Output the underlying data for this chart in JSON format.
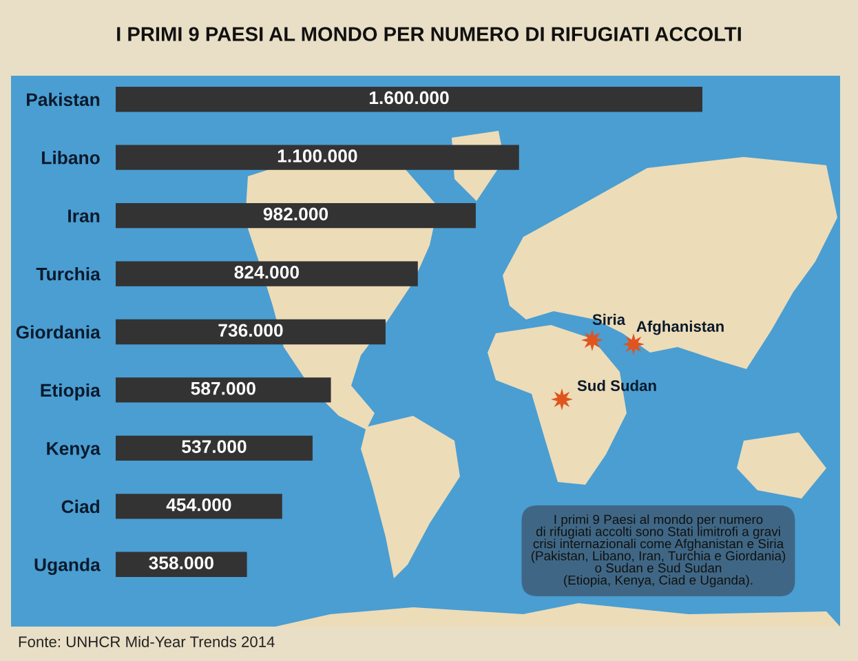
{
  "chart_data": {
    "type": "bar",
    "orientation": "horizontal",
    "title": "I PRIMI 9 PAESI AL MONDO PER NUMERO DI RIFUGIATI ACCOLTI",
    "categories": [
      "Pakistan",
      "Libano",
      "Iran",
      "Turchia",
      "Giordania",
      "Etiopia",
      "Kenya",
      "Ciad",
      "Uganda"
    ],
    "values": [
      1600000,
      1100000,
      982000,
      824000,
      736000,
      587000,
      537000,
      454000,
      358000
    ],
    "value_labels": [
      "1.600.000",
      "1.100.000",
      "982.000",
      "824.000",
      "736.000",
      "587.000",
      "537.000",
      "454.000",
      "358.000"
    ],
    "color": "#333333",
    "tick_labels": "y",
    "annotations": [
      "Siria",
      "Afghanistan",
      "Sud Sudan",
      "I primi 9 Paesi al mondo per numero\ndi rifugiati accolti sono Stati limitrofi a gravi\ncrisi internazionali come Afghanistan e Siria\n(Pakistan, Libano, Iran, Turchia e Giordania)\no Sudan e Sud Sudan\n(Etiopia, Kenya, Ciad e Uganda).",
      "Fonte: UNHCR Mid-Year Trends 2014"
    ]
  }
}
